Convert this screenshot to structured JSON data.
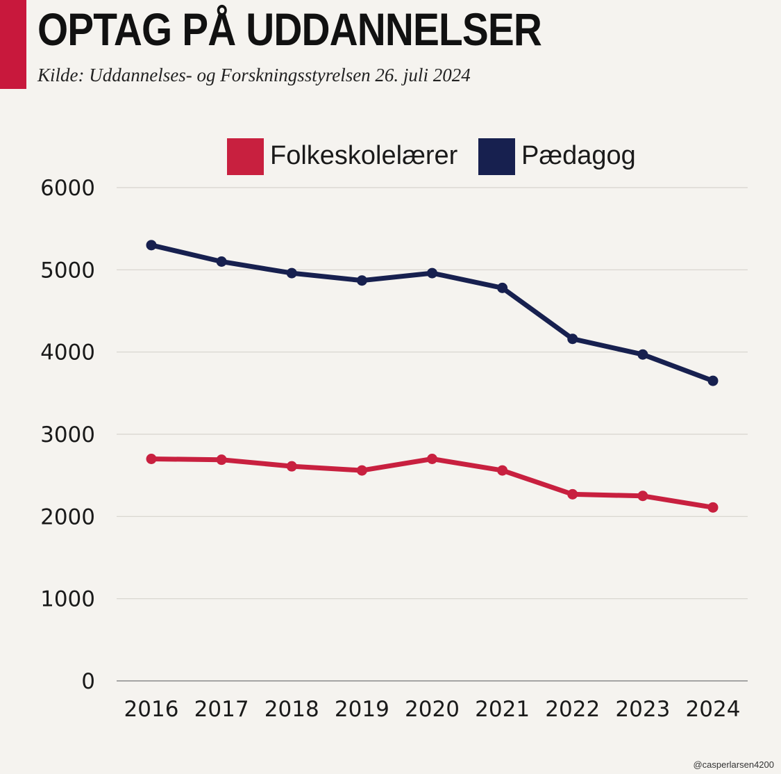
{
  "header": {
    "title": "OPTAG PÅ UDDANNELSER",
    "subtitle": "Kilde: Uddannelses- og Forskningsstyrelsen 26. juli 2024",
    "accent_color": "#c8183c"
  },
  "credit": "@casperlarsen4200",
  "chart_data": {
    "type": "line",
    "x": [
      "2016",
      "2017",
      "2018",
      "2019",
      "2020",
      "2021",
      "2022",
      "2023",
      "2024"
    ],
    "series": [
      {
        "name": "Folkeskolelærer",
        "color": "#c8203f",
        "values": [
          2700,
          2690,
          2610,
          2560,
          2700,
          2560,
          2270,
          2250,
          2110
        ]
      },
      {
        "name": "Pædagog",
        "color": "#17204f",
        "values": [
          5300,
          5100,
          4960,
          4870,
          4960,
          4780,
          4160,
          3970,
          3650
        ]
      }
    ],
    "y_ticks": [
      0,
      1000,
      2000,
      3000,
      4000,
      5000,
      6000
    ],
    "ylim": [
      0,
      6000
    ],
    "grid": true,
    "legend_position": "top-center",
    "title": "",
    "xlabel": "",
    "ylabel": ""
  }
}
